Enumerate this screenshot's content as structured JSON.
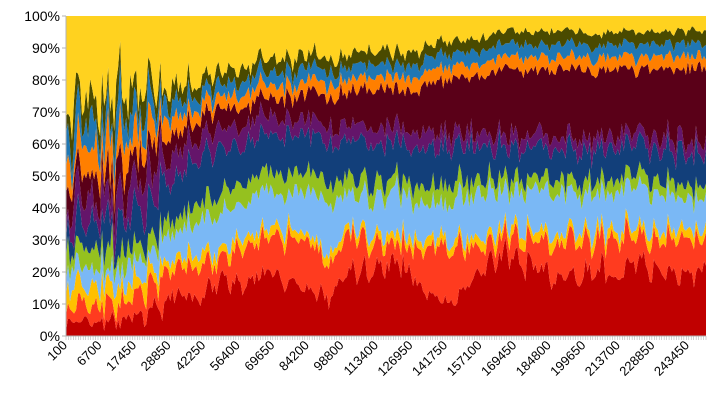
{
  "chart_data": {
    "type": "area",
    "stacked": "percent",
    "title": "",
    "xlabel": "",
    "ylabel": "",
    "ylim": [
      0,
      100
    ],
    "grid": false,
    "legend": "none",
    "y_tick_labels": [
      "0%",
      "10%",
      "20%",
      "30%",
      "40%",
      "50%",
      "60%",
      "70%",
      "80%",
      "90%",
      "100%"
    ],
    "x_tick_labels": [
      "100",
      "6700",
      "17450",
      "28850",
      "42250",
      "56400",
      "69650",
      "84200",
      "98800",
      "113400",
      "126950",
      "141750",
      "157100",
      "169450",
      "184800",
      "199650",
      "213700",
      "228850",
      "243450"
    ],
    "x_range": [
      100,
      253000
    ],
    "series": [
      {
        "color": "#c00000",
        "values": [
          3,
          5,
          4,
          6,
          8,
          14,
          12,
          18,
          16,
          20,
          18,
          14,
          12,
          22,
          20,
          24,
          16,
          10,
          14,
          22,
          26,
          24,
          20,
          18,
          22,
          20,
          24,
          22,
          20,
          22
        ]
      },
      {
        "color": "#ff3b1f",
        "values": [
          4,
          6,
          5,
          6,
          8,
          8,
          10,
          6,
          12,
          10,
          14,
          16,
          10,
          12,
          8,
          6,
          10,
          18,
          14,
          6,
          6,
          8,
          10,
          12,
          10,
          12,
          8,
          10,
          12,
          10
        ]
      },
      {
        "color": "#ffc000",
        "values": [
          6,
          5,
          6,
          5,
          4,
          3,
          4,
          3,
          3,
          3,
          3,
          2,
          3,
          2,
          3,
          3,
          3,
          3,
          3,
          3,
          3,
          3,
          3,
          3,
          3,
          3,
          3,
          3,
          3,
          3
        ]
      },
      {
        "color": "#7ab8f5",
        "values": [
          5,
          6,
          5,
          5,
          6,
          8,
          10,
          12,
          10,
          12,
          10,
          14,
          16,
          10,
          12,
          14,
          12,
          10,
          14,
          14,
          12,
          14,
          12,
          12,
          12,
          12,
          14,
          12,
          10,
          10
        ]
      },
      {
        "color": "#95c11f",
        "values": [
          5,
          6,
          6,
          5,
          4,
          4,
          6,
          6,
          6,
          6,
          6,
          6,
          6,
          5,
          5,
          4,
          5,
          6,
          5,
          4,
          4,
          4,
          4,
          4,
          4,
          4,
          4,
          4,
          4,
          4
        ]
      },
      {
        "color": "#123f7a",
        "values": [
          8,
          8,
          8,
          10,
          12,
          12,
          14,
          14,
          12,
          12,
          12,
          12,
          12,
          12,
          12,
          12,
          12,
          12,
          12,
          10,
          10,
          10,
          10,
          10,
          10,
          10,
          10,
          10,
          10,
          10
        ]
      },
      {
        "color": "#64156a",
        "values": [
          8,
          8,
          8,
          8,
          10,
          8,
          6,
          6,
          6,
          6,
          5,
          5,
          5,
          5,
          5,
          5,
          5,
          5,
          4,
          4,
          4,
          4,
          4,
          4,
          4,
          4,
          4,
          4,
          4,
          4
        ]
      },
      {
        "color": "#5a0018",
        "values": [
          8,
          8,
          8,
          8,
          8,
          6,
          6,
          6,
          6,
          6,
          6,
          8,
          10,
          10,
          12,
          12,
          14,
          16,
          18,
          20,
          22,
          20,
          22,
          22,
          20,
          22,
          20,
          22,
          24,
          24
        ]
      },
      {
        "color": "#ff7f00",
        "values": [
          8,
          8,
          8,
          8,
          6,
          5,
          4,
          4,
          4,
          4,
          4,
          4,
          4,
          4,
          4,
          4,
          4,
          4,
          4,
          4,
          4,
          4,
          4,
          4,
          4,
          4,
          4,
          4,
          4,
          4
        ]
      },
      {
        "color": "#1f77b4",
        "values": [
          8,
          8,
          8,
          8,
          6,
          5,
          4,
          4,
          4,
          4,
          4,
          4,
          4,
          4,
          4,
          4,
          4,
          4,
          4,
          4,
          4,
          4,
          4,
          4,
          4,
          4,
          4,
          4,
          4,
          4
        ]
      },
      {
        "color": "#4a4a00",
        "values": [
          8,
          6,
          8,
          8,
          6,
          5,
          4,
          4,
          4,
          4,
          4,
          4,
          4,
          4,
          4,
          4,
          4,
          4,
          4,
          4,
          4,
          4,
          4,
          4,
          4,
          4,
          4,
          4,
          4,
          4
        ]
      },
      {
        "color": "#ffd21f",
        "values": [
          29,
          26,
          26,
          23,
          22,
          22,
          20,
          17,
          17,
          13,
          14,
          11,
          14,
          12,
          11,
          12,
          11,
          8,
          8,
          7,
          5,
          5,
          5,
          5,
          6,
          5,
          5,
          5,
          5,
          5
        ]
      }
    ]
  }
}
